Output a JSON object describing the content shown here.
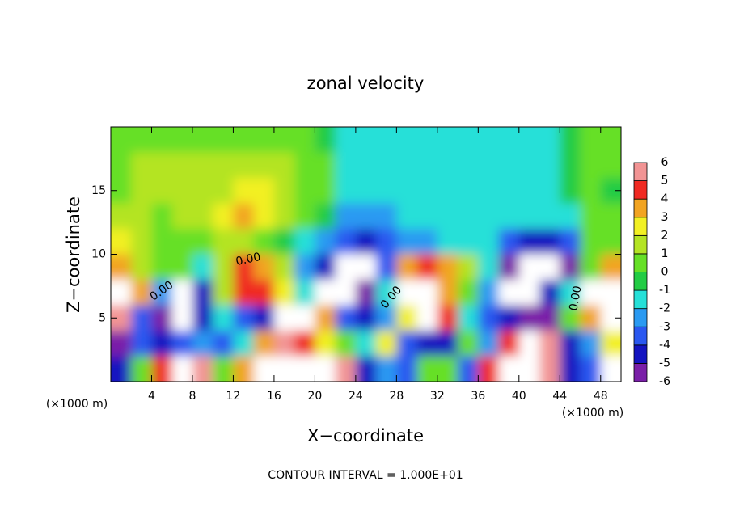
{
  "chart_data": {
    "type": "heatmap",
    "title": "zonal velocity",
    "x_label": "X−coordinate",
    "y_label": "Z−coordinate",
    "x_unit_left": "(×1000 m)",
    "x_unit_right": "(×1000 m)",
    "footer": "CONTOUR INTERVAL = 1.000E+01",
    "contour_labels": [
      "0.00",
      "0.00",
      "0.00",
      "0.00"
    ],
    "xlim": [
      0,
      50
    ],
    "ylim": [
      0,
      20
    ],
    "xticks": [
      4,
      8,
      12,
      16,
      20,
      24,
      28,
      32,
      36,
      40,
      44,
      48
    ],
    "yticks": [
      5,
      10,
      15
    ],
    "x": [
      1,
      3,
      5,
      7,
      9,
      11,
      13,
      15,
      17,
      19,
      21,
      23,
      25,
      27,
      29,
      31,
      33,
      35,
      37,
      39,
      41,
      43,
      45,
      47,
      49
    ],
    "y": [
      19,
      17,
      15,
      13,
      11,
      9,
      7,
      5,
      3,
      1
    ],
    "z": [
      [
        0.7,
        0.7,
        0.7,
        0.7,
        0.7,
        0.7,
        0.7,
        0.7,
        0.7,
        0.7,
        -0.3,
        -1,
        -1,
        -1.2,
        -1.2,
        -1.2,
        -1.2,
        -1.2,
        -1.2,
        -1.2,
        -1.2,
        -1,
        -0.8,
        0.5,
        0.5
      ],
      [
        0.8,
        1.2,
        1.2,
        1.2,
        1.2,
        1.5,
        1.5,
        1.5,
        1.5,
        0.8,
        0.2,
        -1.2,
        -1.2,
        -1.2,
        -1.2,
        -1,
        -1,
        -1,
        -1,
        -1,
        -1,
        -1,
        -0.5,
        0.5,
        0.5
      ],
      [
        1,
        1.5,
        1.5,
        1.5,
        1.5,
        2,
        2.8,
        2.5,
        1.5,
        0.8,
        0.2,
        -1.2,
        -1.5,
        -1.5,
        -1.3,
        -1.2,
        -1.2,
        -1.2,
        -1.2,
        -1.2,
        -1.2,
        -1.2,
        -0.5,
        0.3,
        -0.5
      ],
      [
        1.5,
        1.2,
        1,
        1.2,
        1.8,
        2.5,
        3.3,
        3,
        1.8,
        0.5,
        -0.8,
        -2,
        -2.5,
        -2.3,
        -1.8,
        -1.5,
        -1.3,
        -1.3,
        -1.3,
        -1.3,
        -1.3,
        -1.5,
        -1,
        0.5,
        0.5
      ],
      [
        2.5,
        1.5,
        0.8,
        0.8,
        1,
        1.2,
        1.3,
        0.8,
        -0.3,
        -1.5,
        -2.5,
        -3.5,
        -4.2,
        -3.5,
        -2.5,
        -2,
        -1.5,
        -1.5,
        -1.8,
        -3,
        -4.5,
        -4,
        -3,
        0.5,
        1
      ],
      [
        4,
        2,
        1,
        0.3,
        -1,
        2,
        4.5,
        4,
        2,
        -2,
        -4.5,
        8,
        8,
        -3,
        4,
        5,
        4,
        2,
        -1,
        -5,
        8,
        8,
        -5,
        0.5,
        4
      ],
      [
        8,
        4,
        -2,
        8,
        -4,
        2,
        4.5,
        5,
        3,
        -1,
        8,
        8,
        -5,
        -1,
        8,
        8,
        4,
        0.5,
        -2,
        8,
        8,
        -4,
        -1,
        8,
        8
      ],
      [
        6,
        -3,
        -5,
        8,
        -4,
        -1,
        -3,
        -4,
        8,
        8,
        4,
        -3,
        -4,
        -2,
        3,
        8,
        5,
        -1,
        -3,
        -4,
        -5,
        -5,
        1,
        4,
        8
      ],
      [
        -5,
        -3,
        -4,
        -3,
        -2,
        -3,
        -1,
        4,
        6,
        5,
        3,
        1,
        -1,
        3,
        -3,
        -4,
        -4,
        1,
        -2,
        5,
        8,
        6,
        -4,
        -2,
        3
      ],
      [
        -4,
        1,
        5,
        8,
        6,
        0.5,
        4,
        8,
        8,
        8,
        8,
        6,
        -4,
        -2,
        -3,
        1,
        0.5,
        -3,
        5,
        8,
        8,
        6,
        -4,
        -3,
        8
      ]
    ],
    "out_of_range_color": "#ffffff",
    "colorbar": {
      "levels": [
        -6,
        -5,
        -4,
        -3,
        -2,
        -1,
        0,
        1,
        2,
        3,
        4,
        5,
        6
      ],
      "colors": [
        "#7a1fa8",
        "#1414c0",
        "#2a58f0",
        "#2a9af2",
        "#25e0d8",
        "#22cc44",
        "#66e026",
        "#b4e424",
        "#f2f024",
        "#f2a422",
        "#f02a22",
        "#f29494"
      ]
    }
  }
}
